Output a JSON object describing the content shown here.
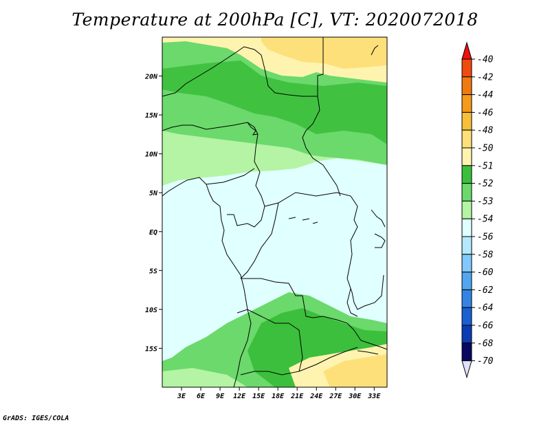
{
  "title": "Temperature at 200hPa [C], VT: 2020072018",
  "footer": "GrADS: IGES/COLA",
  "map": {
    "lon_range": [
      0,
      35
    ],
    "lat_range": [
      -20,
      25
    ],
    "lon_ticks": [
      "3E",
      "6E",
      "9E",
      "12E",
      "15E",
      "18E",
      "21E",
      "24E",
      "27E",
      "30E",
      "33E"
    ],
    "lat_ticks": [
      "20N",
      "15N",
      "10N",
      "5N",
      "EQ",
      "5S",
      "10S",
      "15S"
    ]
  },
  "colorbar": {
    "labels": [
      "-40",
      "-42",
      "-44",
      "-46",
      "-48",
      "-50",
      "-51",
      "-52",
      "-53",
      "-54",
      "-56",
      "-58",
      "-60",
      "-62",
      "-64",
      "-66",
      "-68",
      "-70"
    ],
    "colors": [
      "#f01010",
      "#f04a10",
      "#f07a10",
      "#f59a1a",
      "#f9bf3a",
      "#fde07a",
      "#fff3b0",
      "#3cbf3c",
      "#6bd96b",
      "#b4f4a4",
      "#e0ffff",
      "#b4e8ff",
      "#80c8ff",
      "#52a6f0",
      "#3484e6",
      "#1a60d0",
      "#0a3cb4",
      "#080860",
      "#e0e0ff"
    ]
  },
  "fields": {
    "fill_colors": {
      "warm_dark": "#fde07a",
      "warm_light": "#fff3b0",
      "green_dark": "#3cbf3c",
      "green_mid": "#6bd96b",
      "green_light": "#b4f4a4",
      "cold": "#e0ffff"
    }
  }
}
